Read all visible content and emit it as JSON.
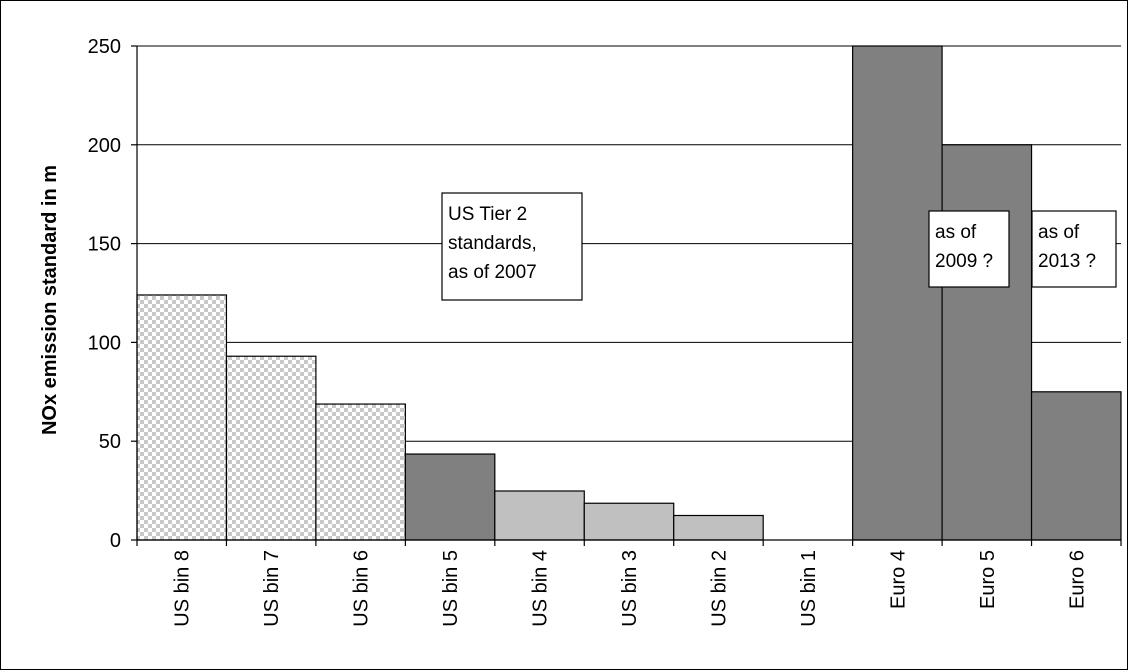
{
  "chart_data": {
    "type": "bar",
    "title": "",
    "xlabel": "",
    "ylabel": "NOx emission standard in m",
    "ylim": [
      0,
      250
    ],
    "y_ticks": [
      0,
      50,
      100,
      150,
      200,
      250
    ],
    "grid": true,
    "categories": [
      "US bin 8",
      "US bin 7",
      "US bin 6",
      "US bin 5",
      "US bin 4",
      "US bin 3",
      "US bin 2",
      "US bin 1",
      "Euro 4",
      "Euro 5",
      "Euro 6"
    ],
    "values": [
      124,
      93,
      68.8,
      43.5,
      24.8,
      18.6,
      12.4,
      0,
      250,
      200,
      75
    ],
    "bar_styles": [
      "checker",
      "checker",
      "checker",
      "dark",
      "light",
      "light",
      "light",
      "light",
      "dark",
      "dark",
      "dark"
    ],
    "colors": {
      "dark": "#808080",
      "light": "#c0c0c0",
      "checker_a": "#ffffff",
      "checker_b": "#c8c8c8",
      "grid": "#000000"
    },
    "annotations": [
      {
        "lines": [
          "US Tier 2",
          "standards,",
          "as of 2007"
        ]
      },
      {
        "lines": [
          "as of",
          "2009 ?"
        ]
      },
      {
        "lines": [
          "as of",
          "2013 ?"
        ]
      }
    ]
  }
}
